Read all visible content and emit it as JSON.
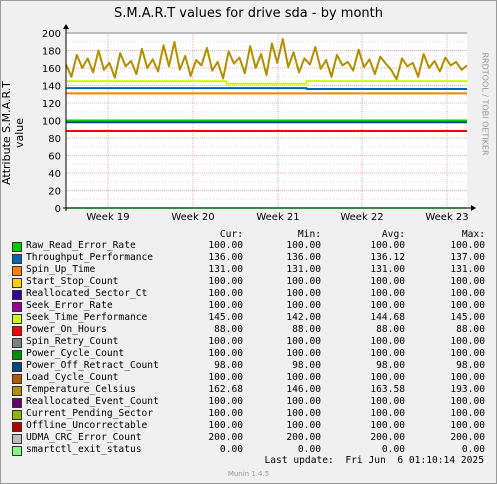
{
  "title": "S.M.A.R.T values for drive sda - by month",
  "ylabel": "Attribute S.M.A.R.T value",
  "side_label": "RRDTOOL / TOBI OETIKER",
  "table_headers": {
    "cur": "Cur:",
    "min": "Min:",
    "avg": "Avg:",
    "max": "Max:"
  },
  "last_update": "Last update:  Fri Jun  6 01:10:14 2025",
  "footer": "Munin 1.4.5",
  "chart_data": {
    "type": "line",
    "title": "S.M.A.R.T values for drive sda - by month",
    "ylabel": "Attribute S.M.A.R.T value",
    "xlabel": "",
    "ylim": [
      0,
      200
    ],
    "yticks": [
      0,
      20,
      40,
      60,
      80,
      100,
      120,
      140,
      160,
      180,
      200
    ],
    "xticks": [
      "Week 19",
      "Week 20",
      "Week 21",
      "Week 22",
      "Week 23"
    ],
    "grid": true,
    "legend_position": "bottom",
    "series": [
      {
        "name": "Raw_Read_Error_Rate",
        "color": "#00cc00",
        "cur": "100.00",
        "min": "100.00",
        "avg": "100.00",
        "max": "100.00",
        "values": [
          100,
          100,
          100,
          100,
          100
        ]
      },
      {
        "name": "Throughput_Performance",
        "color": "#0066b3",
        "cur": "136.00",
        "min": "136.00",
        "avg": "136.12",
        "max": "137.00",
        "values": [
          137,
          137,
          137,
          136,
          136
        ]
      },
      {
        "name": "Spin_Up_Time",
        "color": "#ff8000",
        "cur": "131.00",
        "min": "131.00",
        "avg": "131.00",
        "max": "131.00",
        "values": [
          131,
          131,
          131,
          131,
          131
        ]
      },
      {
        "name": "Start_Stop_Count",
        "color": "#ffcc00",
        "cur": "100.00",
        "min": "100.00",
        "avg": "100.00",
        "max": "100.00",
        "values": [
          100,
          100,
          100,
          100,
          100
        ]
      },
      {
        "name": "Reallocated_Sector_Ct",
        "color": "#330099",
        "cur": "100.00",
        "min": "100.00",
        "avg": "100.00",
        "max": "100.00",
        "values": [
          100,
          100,
          100,
          100,
          100
        ]
      },
      {
        "name": "Seek_Error_Rate",
        "color": "#990099",
        "cur": "100.00",
        "min": "100.00",
        "avg": "100.00",
        "max": "100.00",
        "values": [
          100,
          100,
          100,
          100,
          100
        ]
      },
      {
        "name": "Seek_Time_Performance",
        "color": "#ccff00",
        "cur": "145.00",
        "min": "142.00",
        "avg": "144.68",
        "max": "145.00",
        "values": [
          145,
          145,
          142,
          145,
          145
        ]
      },
      {
        "name": "Power_On_Hours",
        "color": "#ff0000",
        "cur": "88.00",
        "min": "88.00",
        "avg": "88.00",
        "max": "88.00",
        "values": [
          88,
          88,
          88,
          88,
          88
        ]
      },
      {
        "name": "Spin_Retry_Count",
        "color": "#808080",
        "cur": "100.00",
        "min": "100.00",
        "avg": "100.00",
        "max": "100.00",
        "values": [
          100,
          100,
          100,
          100,
          100
        ]
      },
      {
        "name": "Power_Cycle_Count",
        "color": "#008f00",
        "cur": "100.00",
        "min": "100.00",
        "avg": "100.00",
        "max": "100.00",
        "values": [
          100,
          100,
          100,
          100,
          100
        ]
      },
      {
        "name": "Power_Off_Retract_Count",
        "color": "#00487d",
        "cur": "98.00",
        "min": "98.00",
        "avg": "98.00",
        "max": "98.00",
        "values": [
          98,
          98,
          98,
          98,
          98
        ]
      },
      {
        "name": "Load_Cycle_Count",
        "color": "#b35a00",
        "cur": "100.00",
        "min": "100.00",
        "avg": "100.00",
        "max": "100.00",
        "values": [
          100,
          100,
          100,
          100,
          100
        ]
      },
      {
        "name": "Temperature_Celsius",
        "color": "#b38f00",
        "cur": "162.68",
        "min": "146.00",
        "avg": "163.58",
        "max": "193.00",
        "values": [
          164,
          150,
          175,
          160,
          171,
          155,
          180,
          158,
          166,
          149,
          177,
          162,
          168,
          153,
          182,
          160,
          170,
          156,
          186,
          162,
          190,
          158,
          174,
          151,
          169,
          163,
          183,
          157,
          167,
          148,
          179,
          165,
          172,
          154,
          185,
          160,
          176,
          152,
          188,
          166,
          193,
          161,
          178,
          155,
          171,
          164,
          184,
          159,
          169,
          150,
          175,
          163,
          167,
          157,
          181,
          161,
          170,
          153,
          173,
          165,
          158,
          147,
          171,
          162,
          166,
          150,
          176,
          160,
          168,
          156,
          172,
          163,
          167,
          158,
          163
        ]
      },
      {
        "name": "Reallocated_Event_Count",
        "color": "#6b006b",
        "cur": "100.00",
        "min": "100.00",
        "avg": "100.00",
        "max": "100.00",
        "values": [
          100,
          100,
          100,
          100,
          100
        ]
      },
      {
        "name": "Current_Pending_Sector",
        "color": "#8fb300",
        "cur": "100.00",
        "min": "100.00",
        "avg": "100.00",
        "max": "100.00",
        "values": [
          100,
          100,
          100,
          100,
          100
        ]
      },
      {
        "name": "Offline_Uncorrectable",
        "color": "#b30000",
        "cur": "100.00",
        "min": "100.00",
        "avg": "100.00",
        "max": "100.00",
        "values": [
          100,
          100,
          100,
          100,
          100
        ]
      },
      {
        "name": "UDMA_CRC_Error_Count",
        "color": "#bebebe",
        "cur": "200.00",
        "min": "200.00",
        "avg": "200.00",
        "max": "200.00",
        "values": [
          200,
          200,
          200,
          200,
          200
        ]
      },
      {
        "name": "smartctl_exit_status",
        "color": "#80ff80",
        "cur": "0.00",
        "min": "0.00",
        "avg": "0.00",
        "max": "0.00",
        "values": [
          0,
          0,
          0,
          0,
          0
        ]
      }
    ]
  }
}
